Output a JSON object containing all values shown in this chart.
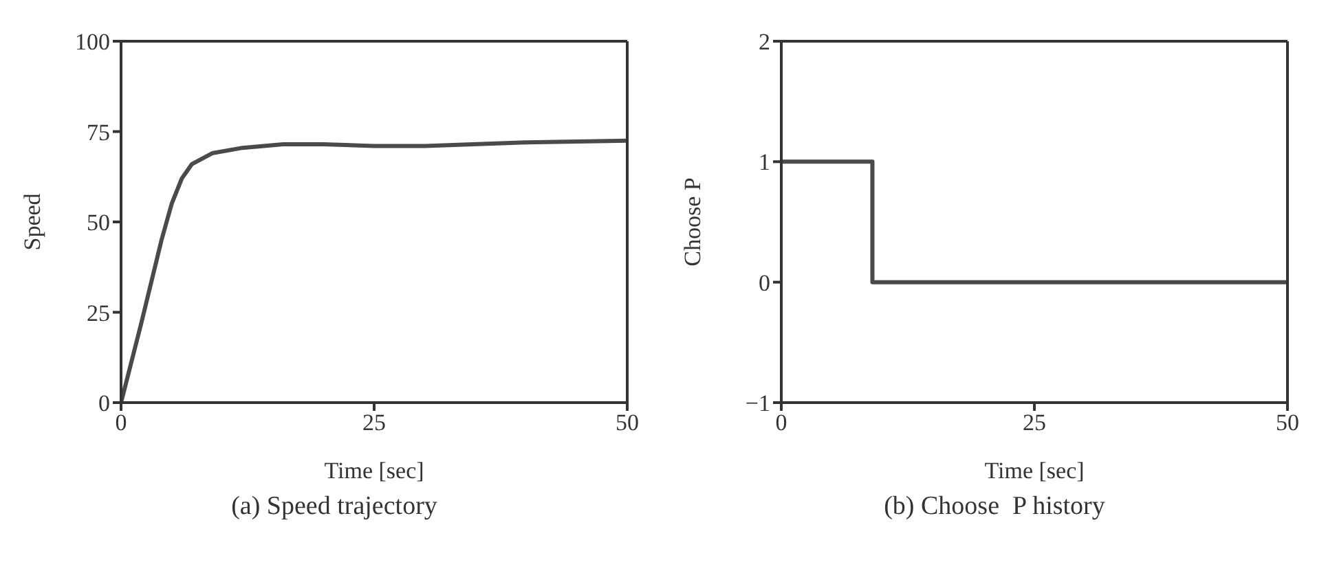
{
  "chart_data": [
    {
      "type": "line",
      "title": "(a) Speed trajectory",
      "xlabel": "Time [sec]",
      "ylabel": "Speed",
      "x": [
        0,
        2,
        4,
        5,
        6,
        7,
        9,
        12,
        16,
        20,
        25,
        30,
        40,
        50
      ],
      "series": [
        {
          "color": "#4a4a4a",
          "values": [
            0,
            22,
            45,
            55,
            62,
            66,
            69,
            70.5,
            71.5,
            71.5,
            71,
            71,
            72,
            72.5
          ]
        }
      ],
      "xlim": [
        0,
        50
      ],
      "xticks": [
        0,
        25,
        50
      ],
      "ylim": [
        0,
        100
      ],
      "yticks": [
        0,
        25,
        50,
        75,
        100
      ],
      "grid": false,
      "legend": false
    },
    {
      "type": "step",
      "title": "(b) Choose  P history",
      "xlabel": "Time [sec]",
      "ylabel": "Choose P",
      "x": [
        0,
        9,
        50
      ],
      "series": [
        {
          "color": "#4a4a4a",
          "values": [
            1,
            0,
            0
          ]
        }
      ],
      "xlim": [
        0,
        50
      ],
      "xticks": [
        0,
        25,
        50
      ],
      "ylim": [
        -1,
        2
      ],
      "yticks": [
        {
          "value": -1,
          "label": "−1"
        },
        0,
        1,
        2
      ],
      "grid": false,
      "legend": false
    }
  ]
}
